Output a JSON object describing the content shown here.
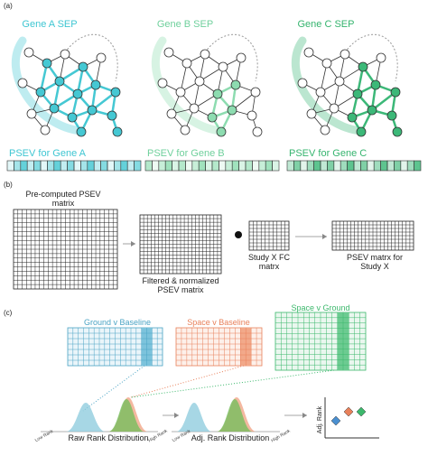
{
  "panel_a": {
    "label": "(a)",
    "genes": [
      {
        "sep": "Gene A SEP",
        "psev": "PSEV for Gene A"
      },
      {
        "sep": "Gene B SEP",
        "psev": "PSEV for Gene B"
      },
      {
        "sep": "Gene C SEP",
        "psev": "PSEV for Gene C"
      }
    ]
  },
  "panel_b": {
    "label": "(b)",
    "matrices": [
      "Pre-computed PSEV matrix",
      "Filtered & normalized PSEV matrix",
      "Study X FC matrx",
      "PSEV matrx for Study X"
    ]
  },
  "panel_c": {
    "label": "(c)",
    "comparisons": [
      "Ground v Baseline",
      "Space v Baseline",
      "Space v Ground"
    ],
    "distributions": [
      {
        "title": "Raw Rank Distribution",
        "low": "Low Rank",
        "high": "High Rank"
      },
      {
        "title": "Adj. Rank Distribution",
        "low": "Low Rank",
        "high": "High Rank"
      }
    ],
    "scatter_axis": "Adj. Rank"
  }
}
